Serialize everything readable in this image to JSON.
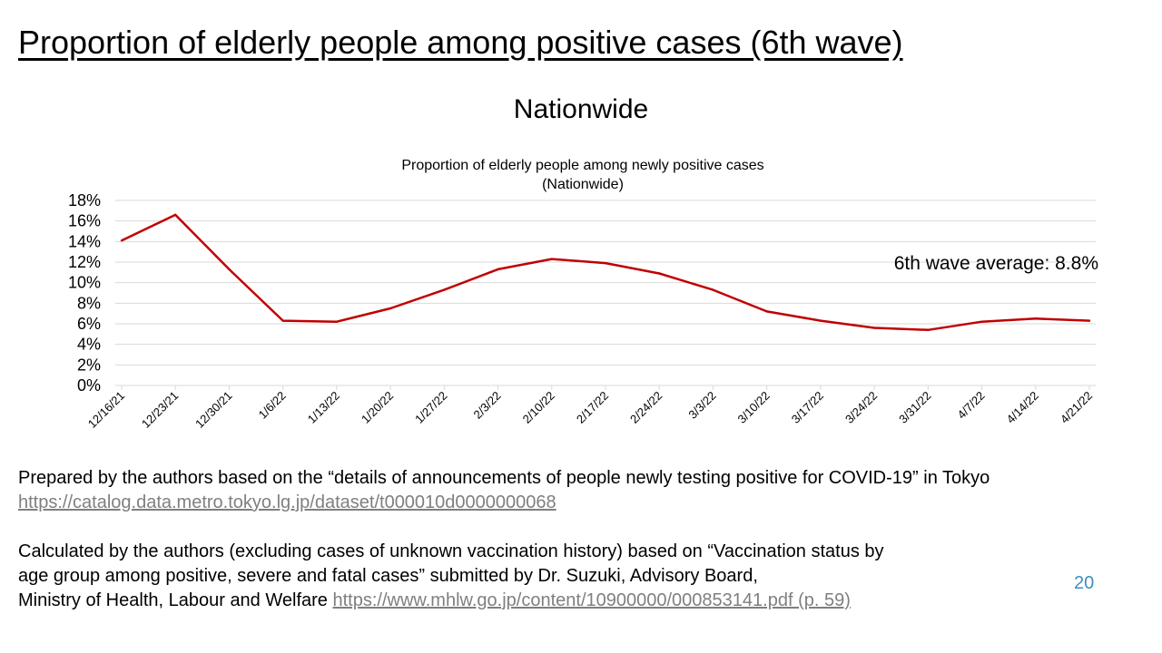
{
  "slide": {
    "title": "Proportion of elderly people among positive cases (6th wave)",
    "subtitle": "Nationwide",
    "page_number": "20"
  },
  "chart_data": {
    "type": "line",
    "title_lines": [
      "Proportion of elderly people among newly positive cases",
      "(Nationwide)"
    ],
    "x": [
      "12/16/21",
      "12/23/21",
      "12/30/21",
      "1/6/22",
      "1/13/22",
      "1/20/22",
      "1/27/22",
      "2/3/22",
      "2/10/22",
      "2/17/22",
      "2/24/22",
      "3/3/22",
      "3/10/22",
      "3/17/22",
      "3/24/22",
      "3/31/22",
      "4/7/22",
      "4/14/22",
      "4/21/22"
    ],
    "series": [
      {
        "values": [
          14.1,
          16.6,
          11.3,
          6.3,
          6.2,
          7.5,
          9.3,
          11.3,
          12.3,
          11.9,
          10.9,
          9.3,
          7.2,
          6.3,
          5.6,
          5.4,
          6.2,
          6.5,
          6.3
        ],
        "color": "#c00000"
      }
    ],
    "ylim": [
      0,
      18
    ],
    "yticks": [
      0,
      2,
      4,
      6,
      8,
      10,
      12,
      14,
      16,
      18
    ],
    "ytick_format": "percent",
    "grid": true,
    "annotation": "6th wave average: 8.8%",
    "gridline_color": "#d9d9d9"
  },
  "notes": {
    "line1": "Prepared by the authors based on the “details of announcements of people newly testing positive for COVID-19” in Tokyo",
    "link1": "https://catalog.data.metro.tokyo.lg.jp/dataset/t000010d0000000068",
    "line2": "Calculated by the authors (excluding cases of unknown vaccination history) based on “Vaccination status by",
    "line3": "age group among positive, severe and fatal cases” submitted by Dr. Suzuki, Advisory Board,",
    "line4": "Ministry of Health, Labour and Welfare",
    "link2": "https://www.mhlw.go.jp/content/10900000/000853141.pdf (p. 59)"
  }
}
